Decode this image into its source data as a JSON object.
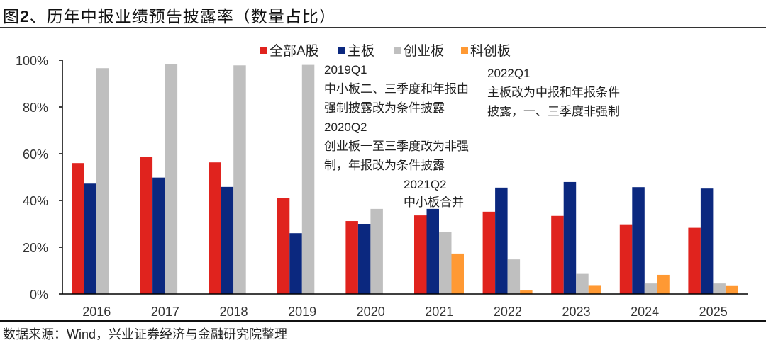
{
  "title_prefix": "图",
  "title_num": "2",
  "title_rest": "、历年中报业绩预告披露率（数量占比）",
  "source": "数据来源：Wind，兴业证券经济与金融研究院整理",
  "chart_data": {
    "type": "bar",
    "title": "历年中报业绩预告披露率（数量占比）",
    "xlabel": "",
    "ylabel": "",
    "ylim": [
      0,
      100
    ],
    "yticks": [
      "0%",
      "20%",
      "40%",
      "60%",
      "80%",
      "100%"
    ],
    "ytick_values": [
      0,
      20,
      40,
      60,
      80,
      100
    ],
    "grid": false,
    "legend_position": "top-center",
    "categories": [
      "2016",
      "2017",
      "2018",
      "2019",
      "2020",
      "2021",
      "2022",
      "2023",
      "2024",
      "2025"
    ],
    "series": [
      {
        "name": "全部A股",
        "color": "#E0231E",
        "values": [
          56.0,
          58.6,
          56.3,
          41.0,
          31.2,
          33.6,
          35.2,
          33.4,
          29.8,
          28.3
        ]
      },
      {
        "name": "主板",
        "color": "#0B287F",
        "values": [
          47.2,
          49.8,
          45.8,
          26.0,
          30.0,
          36.4,
          45.5,
          47.9,
          45.7,
          45.1
        ]
      },
      {
        "name": "创业板",
        "color": "#BFBFBF",
        "values": [
          96.6,
          98.2,
          97.8,
          98.0,
          36.4,
          26.4,
          14.8,
          8.6,
          4.5,
          4.5
        ]
      },
      {
        "name": "科创板",
        "color": "#FF9933",
        "values": [
          null,
          null,
          null,
          null,
          null,
          17.3,
          1.5,
          3.5,
          8.2,
          3.4
        ]
      }
    ],
    "annotations": [
      {
        "lines": [
          "2019Q1",
          "中小板二、三季度和年报由",
          "强制披露改为条件披露",
          "2020Q2",
          "创业板一至三季度改为非强",
          "制，年报改为条件披露"
        ]
      },
      {
        "lines": [
          "2021Q2",
          "中小板合并"
        ]
      },
      {
        "lines": [
          "2022Q1",
          "主板改为中报和年报条件",
          "披露，一、三季度非强制"
        ]
      }
    ]
  }
}
